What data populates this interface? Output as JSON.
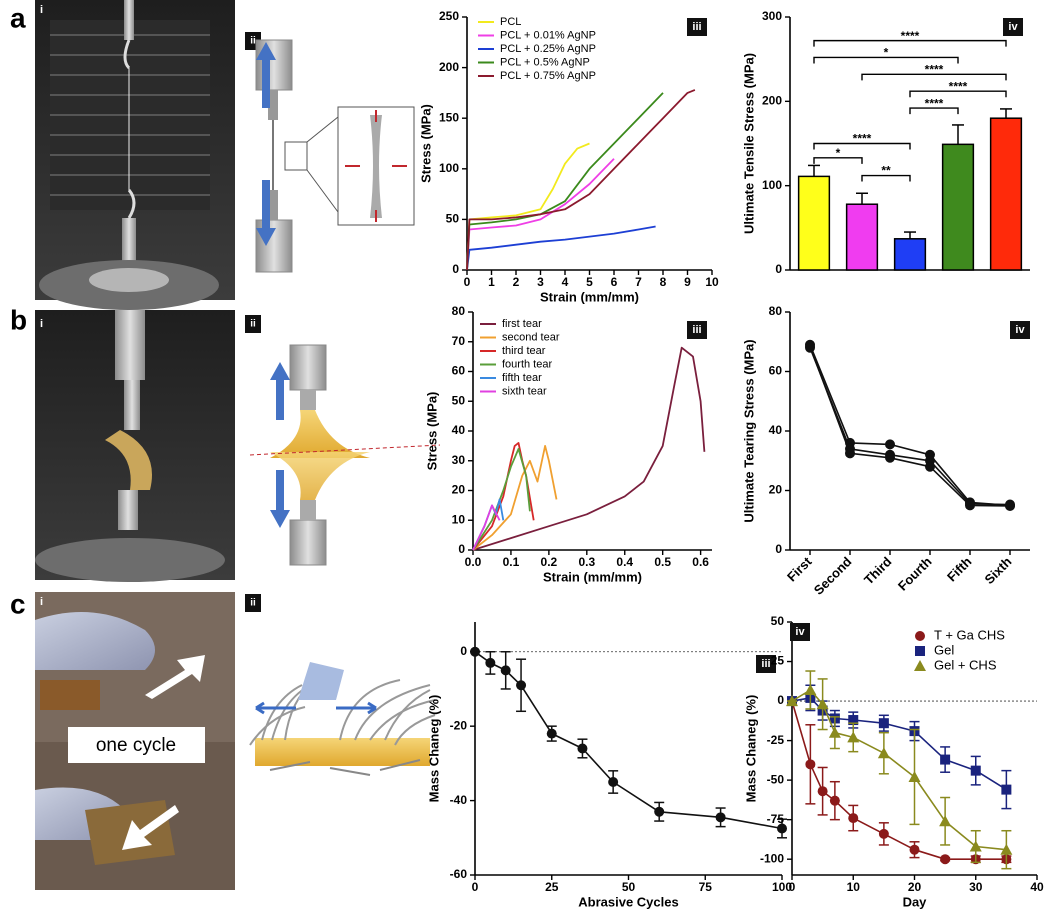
{
  "figure": {
    "panel_letters": [
      "a",
      "b",
      "c"
    ],
    "sub_labels": [
      "i",
      "ii"
    ],
    "caption_text": "one cycle"
  },
  "chart_data": [
    {
      "type": "line",
      "panel_label": "iii",
      "xlabel": "Strain (mm/mm)",
      "ylabel": "Stress (MPa)",
      "xlim": [
        0,
        10
      ],
      "xticks": [
        0,
        1,
        2,
        3,
        4,
        5,
        6,
        7,
        8,
        9,
        10
      ],
      "ylim": [
        0,
        250
      ],
      "yticks": [
        0,
        50,
        100,
        150,
        200,
        250
      ],
      "legend": "upper left",
      "series": [
        {
          "name": "PCL",
          "color": "#f2ea1d",
          "x": [
            0,
            0.1,
            1,
            2,
            3,
            3.5,
            4,
            4.5,
            5
          ],
          "values": [
            0,
            50,
            52,
            54,
            60,
            80,
            105,
            120,
            125
          ]
        },
        {
          "name": "PCL + 0.01% AgNP",
          "color": "#ef3fe6",
          "x": [
            0,
            0.1,
            1,
            2,
            3,
            4,
            5,
            6
          ],
          "values": [
            0,
            40,
            42,
            44,
            50,
            65,
            85,
            110
          ]
        },
        {
          "name": "PCL + 0.25% AgNP",
          "color": "#1d3fd4",
          "x": [
            0,
            0.1,
            1,
            2,
            3,
            4,
            5,
            6,
            7,
            7.7
          ],
          "values": [
            0,
            20,
            22,
            25,
            28,
            30,
            33,
            36,
            40,
            43
          ]
        },
        {
          "name": "PCL + 0.5% AgNP",
          "color": "#3b8a1c",
          "x": [
            0,
            0.1,
            1,
            2,
            3,
            4,
            5,
            6,
            7,
            8
          ],
          "values": [
            0,
            45,
            47,
            50,
            55,
            68,
            100,
            125,
            150,
            175
          ]
        },
        {
          "name": "PCL + 0.75% AgNP",
          "color": "#8b1a2e",
          "x": [
            0,
            0.1,
            1,
            2,
            3,
            4,
            5,
            6,
            7,
            8,
            9,
            9.3
          ],
          "values": [
            0,
            50,
            50,
            52,
            55,
            60,
            75,
            100,
            125,
            150,
            175,
            178
          ]
        }
      ]
    },
    {
      "type": "bar",
      "panel_label": "iv",
      "ylabel": "Ultimate Tensile Stress (MPa)",
      "categories": [
        null,
        null,
        null,
        null,
        null
      ],
      "values": [
        111,
        78,
        37,
        149,
        180
      ],
      "errors": [
        13,
        13,
        8,
        23,
        11
      ],
      "colors": [
        "#ffff1a",
        "#f03cf0",
        "#1f3ef5",
        "#3f8a1e",
        "#ff2a0a"
      ],
      "ylim": [
        0,
        300
      ],
      "yticks": [
        0,
        100,
        200,
        300
      ],
      "comparisons": [
        {
          "pair": [
            0,
            4
          ],
          "label": "****"
        },
        {
          "pair": [
            0,
            3
          ],
          "label": "*"
        },
        {
          "pair": [
            1,
            4
          ],
          "label": "****"
        },
        {
          "pair": [
            2,
            4
          ],
          "label": "****"
        },
        {
          "pair": [
            2,
            3
          ],
          "label": "****"
        },
        {
          "pair": [
            0,
            2
          ],
          "label": "****"
        },
        {
          "pair": [
            0,
            1
          ],
          "label": "*"
        },
        {
          "pair": [
            1,
            2
          ],
          "label": "**"
        }
      ]
    },
    {
      "type": "line",
      "panel_label": "iii",
      "xlabel": "Strain (mm/mm)",
      "ylabel": "Stress (MPa)",
      "xlim": [
        0,
        0.63
      ],
      "xticks": [
        {
          "value": 0,
          "label": "0.0"
        },
        0.1,
        0.2,
        0.3,
        0.4,
        0.5,
        0.6
      ],
      "ylim": [
        0,
        80
      ],
      "yticks": [
        0,
        10,
        20,
        30,
        40,
        50,
        60,
        70,
        80
      ],
      "legend": "upper left",
      "series": [
        {
          "name": "first tear",
          "color": "#7a1f3d",
          "x": [
            0,
            0.1,
            0.2,
            0.3,
            0.4,
            0.45,
            0.5,
            0.53,
            0.55,
            0.58,
            0.6,
            0.61
          ],
          "values": [
            0,
            4,
            8,
            12,
            18,
            23,
            35,
            55,
            68,
            65,
            50,
            33
          ]
        },
        {
          "name": "second tear",
          "color": "#f0a030",
          "x": [
            0,
            0.05,
            0.1,
            0.13,
            0.15,
            0.17,
            0.19,
            0.2,
            0.22
          ],
          "values": [
            0,
            5,
            12,
            25,
            30,
            23,
            35,
            30,
            17
          ]
        },
        {
          "name": "third tear",
          "color": "#d62828",
          "x": [
            0,
            0.05,
            0.08,
            0.1,
            0.11,
            0.12,
            0.13,
            0.14,
            0.16
          ],
          "values": [
            0,
            8,
            18,
            30,
            35,
            36,
            30,
            25,
            10
          ]
        },
        {
          "name": "fourth tear",
          "color": "#5a9e3a",
          "x": [
            0,
            0.05,
            0.08,
            0.1,
            0.12,
            0.14,
            0.15
          ],
          "values": [
            0,
            10,
            20,
            28,
            34,
            25,
            13
          ]
        },
        {
          "name": "fifth tear",
          "color": "#3a8ae0",
          "x": [
            0,
            0.03,
            0.05,
            0.06,
            0.07,
            0.08
          ],
          "values": [
            0,
            8,
            15,
            12,
            17,
            10
          ]
        },
        {
          "name": "sixth tear",
          "color": "#e040e0",
          "x": [
            0,
            0.03,
            0.05,
            0.07
          ],
          "values": [
            0,
            8,
            15,
            10
          ]
        }
      ]
    },
    {
      "type": "line",
      "panel_label": "iv",
      "ylabel": "Ultimate Tearing Stress (MPa)",
      "categories": [
        "First",
        "Second",
        "Third",
        "Fourth",
        "Fifth",
        "Sixth"
      ],
      "ylim": [
        0,
        80
      ],
      "yticks": [
        0,
        20,
        40,
        60,
        80
      ],
      "series": [
        {
          "color": "#111111",
          "marker": "circle",
          "values": [
            69,
            36,
            35.5,
            32,
            16,
            15
          ]
        },
        {
          "color": "#111111",
          "marker": "circle",
          "values": [
            68,
            34,
            32,
            30,
            15.5,
            15.3
          ]
        },
        {
          "color": "#111111",
          "marker": "circle",
          "values": [
            68.5,
            32.5,
            31,
            28,
            15,
            14.8
          ]
        }
      ]
    },
    {
      "type": "line",
      "panel_label": "iii",
      "xlabel": "Abrasive Cycles",
      "ylabel": "Mass Chaneg (%)",
      "xlim": [
        0,
        100
      ],
      "xticks": [
        0,
        25,
        50,
        75,
        100
      ],
      "ylim": [
        -60,
        8
      ],
      "yticks": [
        -60,
        -40,
        -20,
        0
      ],
      "reference_line": 0,
      "series": [
        {
          "color": "#111111",
          "marker": "circle",
          "x": [
            0,
            5,
            10,
            15,
            25,
            35,
            45,
            60,
            80,
            100
          ],
          "values": [
            0,
            -3,
            -5,
            -9,
            -22,
            -26,
            -35,
            -43,
            -44.5,
            -47.5
          ],
          "errors": [
            0,
            3,
            5,
            7,
            2,
            2.5,
            3,
            2.5,
            2.5,
            2.5
          ]
        }
      ]
    },
    {
      "type": "line",
      "panel_label": "iv",
      "xlabel": "Day",
      "ylabel": "Mass Chaneg (%)",
      "xlim": [
        0,
        40
      ],
      "xticks": [
        0,
        10,
        20,
        30,
        40
      ],
      "ylim": [
        -110,
        50
      ],
      "yticks": [
        -100,
        -75,
        -50,
        -25,
        0,
        25,
        50
      ],
      "reference_line": 0,
      "legend": "upper right",
      "series": [
        {
          "name": "T + Ga CHS",
          "color": "#8b1a1a",
          "marker": "circle",
          "x": [
            0,
            3,
            5,
            7,
            10,
            15,
            20,
            25,
            30,
            35
          ],
          "values": [
            0,
            -40,
            -57,
            -63,
            -74,
            -84,
            -94,
            -100,
            -100,
            -100
          ],
          "errors": [
            0,
            25,
            15,
            12,
            8,
            7,
            5,
            1,
            2,
            2
          ]
        },
        {
          "name": "Gel",
          "color": "#1a237e",
          "marker": "square",
          "x": [
            0,
            3,
            5,
            7,
            10,
            15,
            20,
            25,
            30,
            35
          ],
          "values": [
            0,
            2,
            -6,
            -11,
            -12,
            -14,
            -19,
            -37,
            -44,
            -56
          ],
          "errors": [
            0,
            8,
            6,
            5,
            5,
            5,
            6,
            8,
            9,
            12
          ]
        },
        {
          "name": "Gel + CHS",
          "color": "#8a8a1e",
          "marker": "triangle",
          "x": [
            0,
            3,
            5,
            7,
            10,
            15,
            20,
            25,
            30,
            35
          ],
          "values": [
            0,
            7,
            -2,
            -20,
            -23,
            -33,
            -48,
            -76,
            -92,
            -94
          ],
          "errors": [
            0,
            12,
            16,
            10,
            9,
            13,
            30,
            15,
            10,
            12
          ]
        }
      ]
    }
  ]
}
